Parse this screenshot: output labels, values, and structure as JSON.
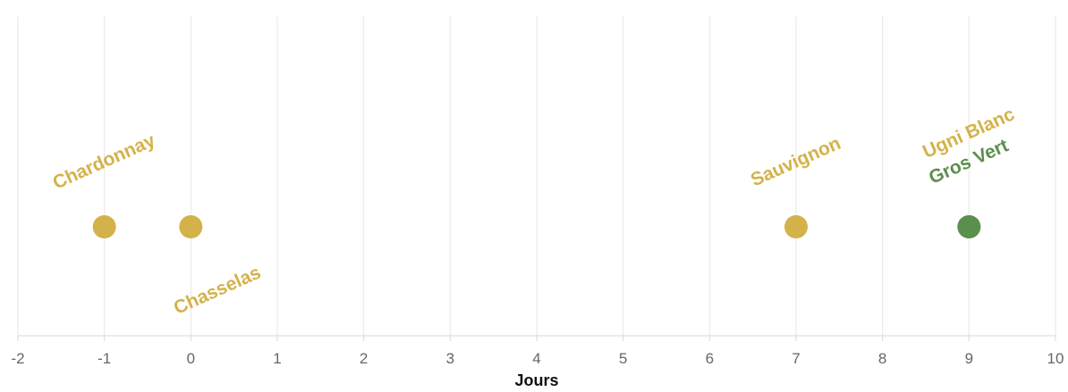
{
  "chart_data": {
    "type": "scatter",
    "title": "",
    "xlabel": "Jours",
    "ylabel": "",
    "xlim": [
      -2,
      10
    ],
    "x_ticks": [
      -2,
      -1,
      0,
      1,
      2,
      3,
      4,
      5,
      6,
      7,
      8,
      9,
      10
    ],
    "grid": true,
    "legend": "none",
    "colors": {
      "gold": "#d4b24a",
      "green": "#5b8f4e",
      "grid": "#e6e6e6",
      "tick_text": "#666666"
    },
    "points": [
      {
        "label": "Chardonnay",
        "x": -1,
        "color": "#d4b24a",
        "label_position": "above"
      },
      {
        "label": "Chasselas",
        "x": 0,
        "color": "#d4b24a",
        "label_position": "below"
      },
      {
        "label": "Sauvignon",
        "x": 7,
        "color": "#d4b24a",
        "label_position": "above"
      },
      {
        "label": "Ugni Blanc",
        "x": 9,
        "color": "#d4b24a",
        "label_position": "above-far"
      },
      {
        "label": "Gros Vert",
        "x": 9,
        "color": "#5b8f4e",
        "label_position": "above"
      }
    ]
  }
}
